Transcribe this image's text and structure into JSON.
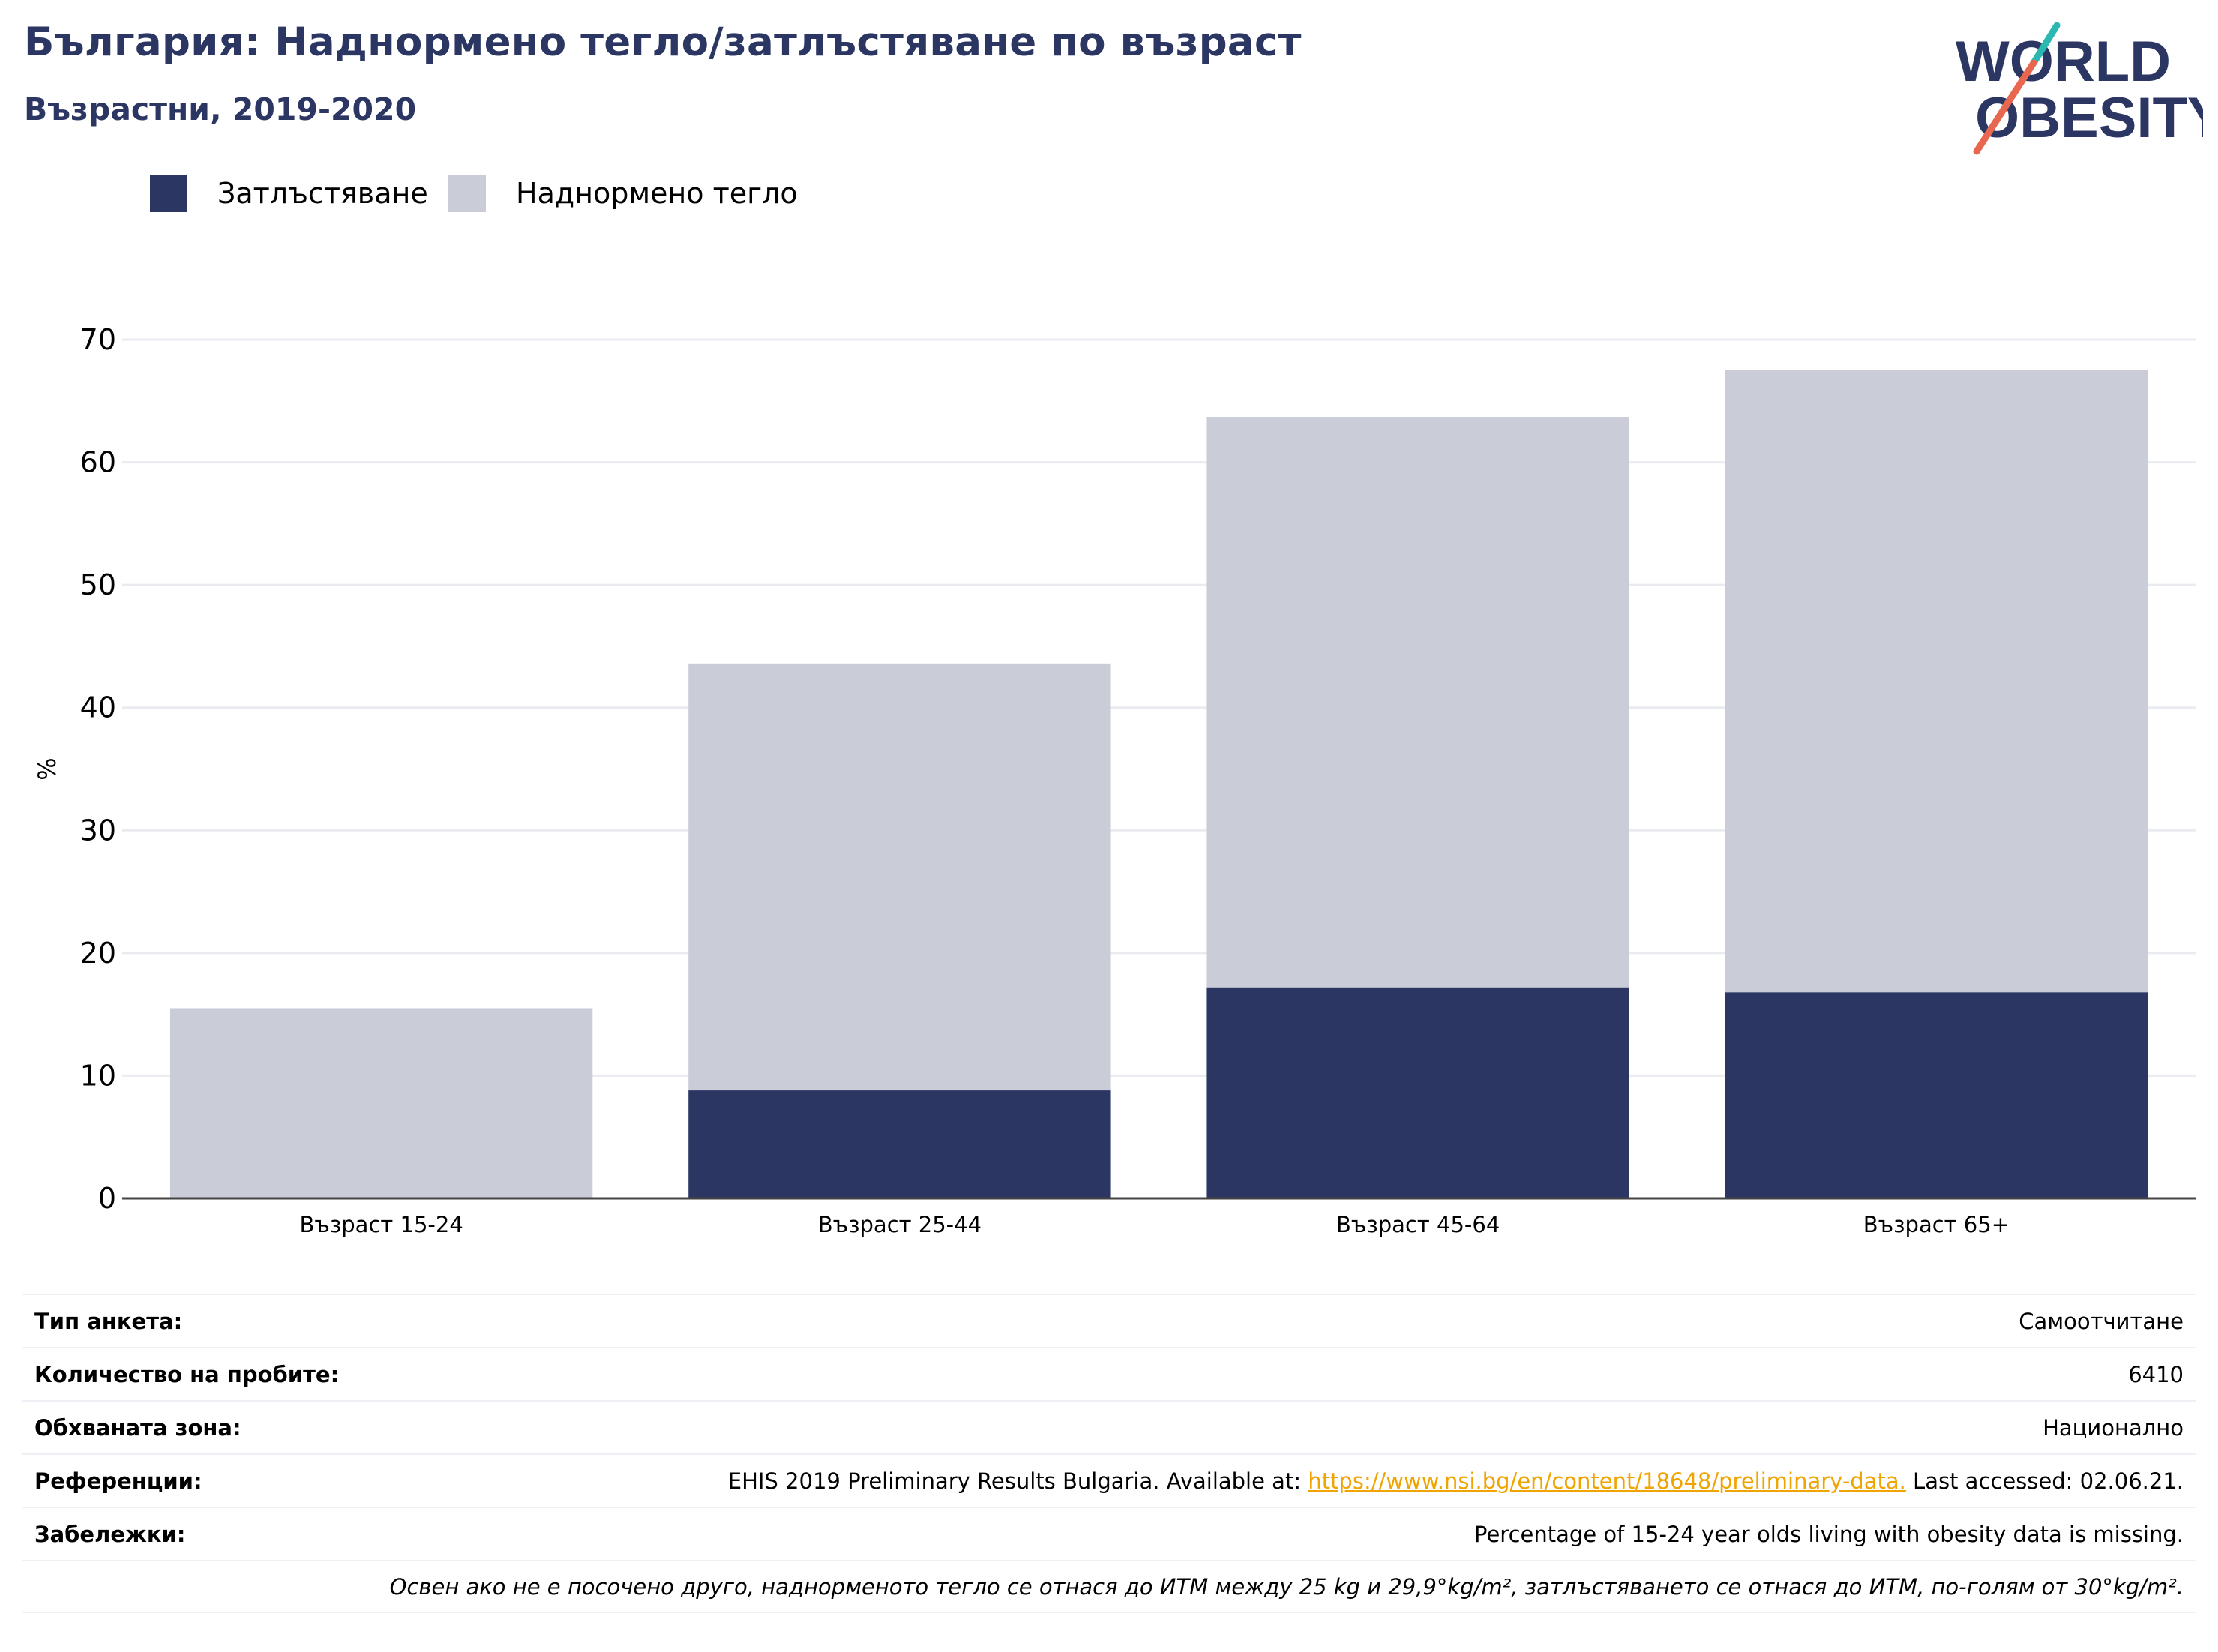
{
  "header": {
    "title": "България: Наднормено тегло/затлъстяване по възраст",
    "subtitle": "Възрастни, 2019-2020"
  },
  "logo": {
    "line1": "WORLD",
    "line2": "OBESITY",
    "colors": {
      "text": "#2b3663",
      "slash_top": "#2bb8b0",
      "slash_bottom": "#e8674f"
    }
  },
  "legend": {
    "items": [
      {
        "label": "Затлъстяване",
        "color": "#2b3663"
      },
      {
        "label": "Наднормено тегло",
        "color": "#cacdd8"
      }
    ]
  },
  "chart_data": {
    "type": "bar",
    "stacked": true,
    "categories": [
      "Възраст 15-24",
      "Възраст 25-44",
      "Възраст 45-64",
      "Възраст 65+"
    ],
    "series": [
      {
        "name": "Затлъстяване",
        "color": "#2b3663",
        "values": [
          null,
          8.8,
          17.2,
          16.8
        ]
      },
      {
        "name": "Наднормено тегло",
        "color": "#cacdd8",
        "values": [
          15.5,
          34.8,
          46.5,
          50.7
        ]
      }
    ],
    "ylabel": "%",
    "ylim": [
      0,
      70
    ],
    "yticks": [
      0,
      10,
      20,
      30,
      40,
      50,
      60,
      70
    ],
    "grid": true,
    "legend_position": "top-left"
  },
  "info": {
    "survey_type_label": "Тип анкета:",
    "survey_type_value": "Самоотчитане",
    "sample_size_label": "Количество на пробите:",
    "sample_size_value": "6410",
    "area_label": "Обхваната зона:",
    "area_value": "Национално",
    "references_label": "Референции:",
    "references_prefix": "EHIS 2019 Preliminary Results Bulgaria. Available at: ",
    "references_link": "https://www.nsi.bg/en/content/18648/preliminary-data.",
    "references_suffix": " Last accessed: 02.06.21.",
    "notes_label": "Забележки:",
    "notes_value": "Percentage of 15-24 year olds living with obesity data is missing.",
    "footnote": "Освен ако не е посочено друго, наднорменото тегло се отнася до ИТМ между 25 kg и 29,9°kg/m², затлъстяването се отнася до ИТМ, по-голям от 30°kg/m²."
  }
}
